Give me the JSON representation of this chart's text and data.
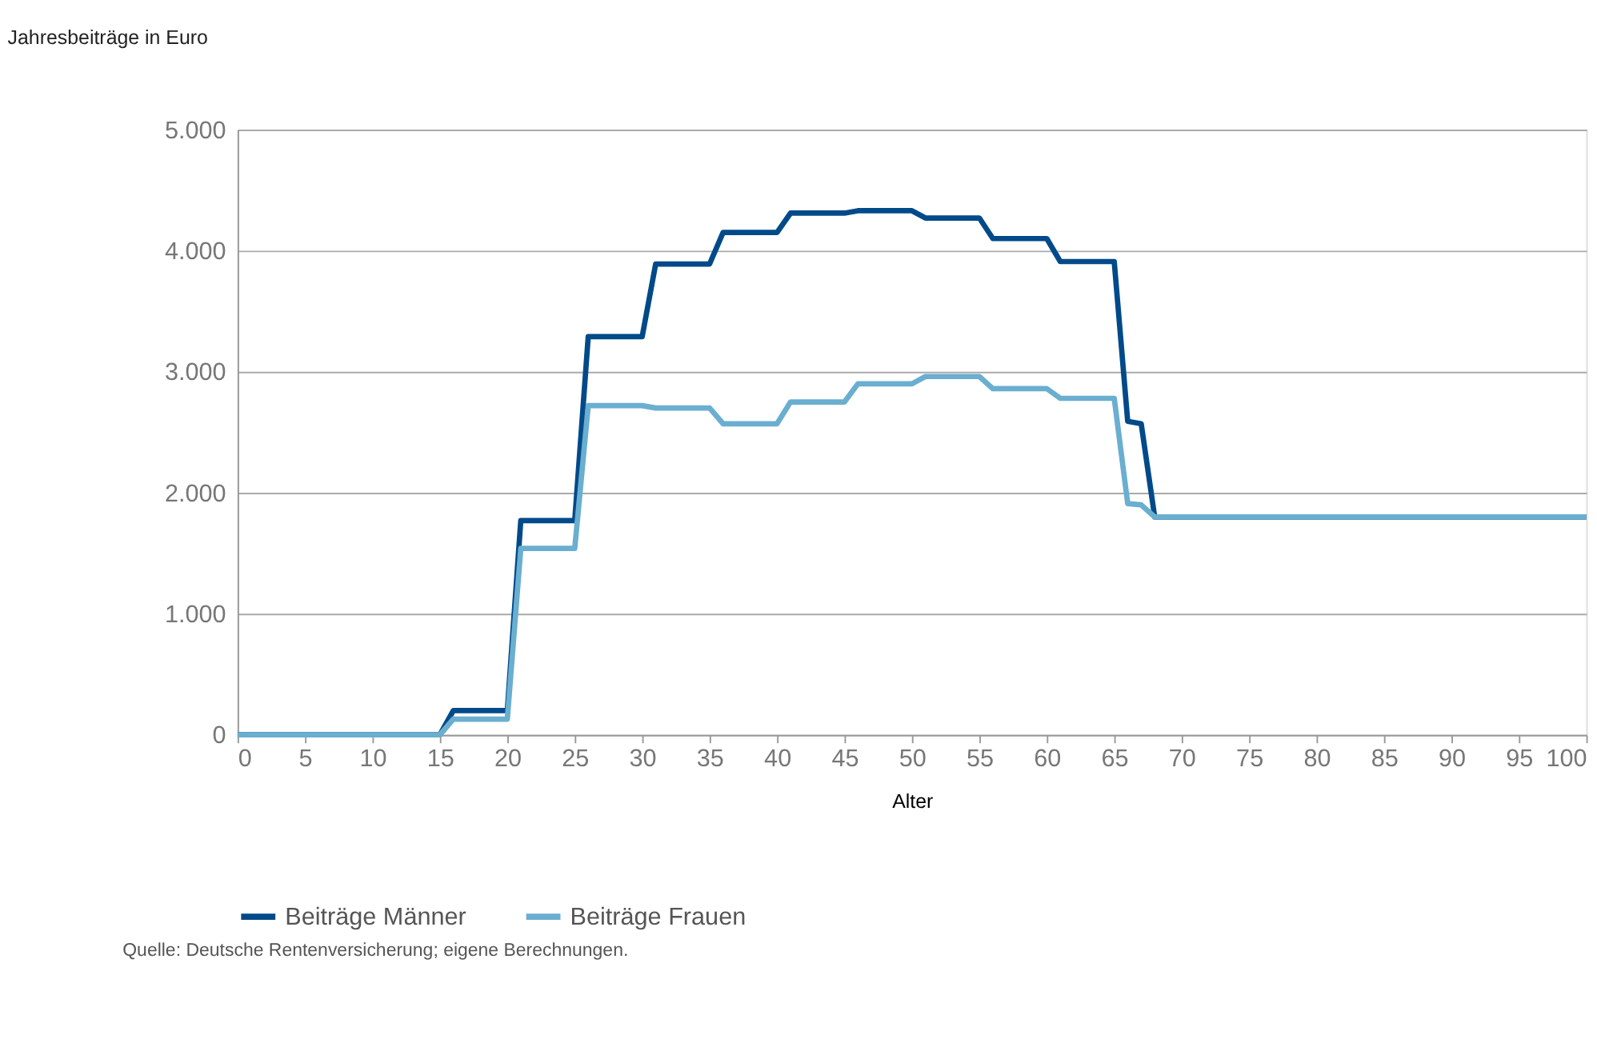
{
  "chart_data": {
    "type": "line",
    "title": "Jahresbeiträge in Euro",
    "xlabel": "Alter",
    "xlim": [
      0,
      100
    ],
    "xticks": [
      0,
      5,
      10,
      15,
      20,
      25,
      30,
      35,
      40,
      45,
      50,
      55,
      60,
      65,
      70,
      75,
      80,
      85,
      90,
      95,
      100
    ],
    "ylim": [
      0,
      5000
    ],
    "yticks": [
      {
        "value": 0,
        "label": "0"
      },
      {
        "value": 1000,
        "label": "1.000"
      },
      {
        "value": 2000,
        "label": "2.000"
      },
      {
        "value": 3000,
        "label": "3.000"
      },
      {
        "value": 4000,
        "label": "4.000"
      },
      {
        "value": 5000,
        "label": "5.000"
      }
    ],
    "grid": "y",
    "legend": "bottom",
    "marker": "none",
    "line_style": "solid",
    "series": [
      {
        "name": "Beiträge Männer",
        "color": "#004a8a",
        "x": [
          0,
          15,
          16,
          20,
          21,
          25,
          26,
          30,
          31,
          35,
          36,
          40,
          41,
          45,
          46,
          50,
          51,
          55,
          56,
          60,
          61,
          65,
          66,
          67,
          68,
          100
        ],
        "values": [
          0,
          0,
          200,
          200,
          1770,
          1770,
          3290,
          3290,
          3890,
          3890,
          4150,
          4150,
          4310,
          4310,
          4330,
          4330,
          4270,
          4270,
          4100,
          4100,
          3910,
          3910,
          2590,
          2570,
          1800,
          1800
        ]
      },
      {
        "name": "Beiträge Frauen",
        "color": "#6aaed0",
        "x": [
          0,
          15,
          16,
          20,
          21,
          25,
          26,
          30,
          31,
          35,
          36,
          40,
          41,
          45,
          46,
          50,
          51,
          55,
          56,
          60,
          61,
          65,
          66,
          67,
          68,
          100
        ],
        "values": [
          0,
          0,
          130,
          130,
          1540,
          1540,
          2720,
          2720,
          2700,
          2700,
          2570,
          2570,
          2750,
          2750,
          2900,
          2900,
          2960,
          2960,
          2860,
          2860,
          2780,
          2780,
          1910,
          1900,
          1800,
          1800
        ]
      }
    ],
    "annotations": [
      "Quelle: Deutsche Rentenversicherung; eigene Berechnungen."
    ]
  }
}
